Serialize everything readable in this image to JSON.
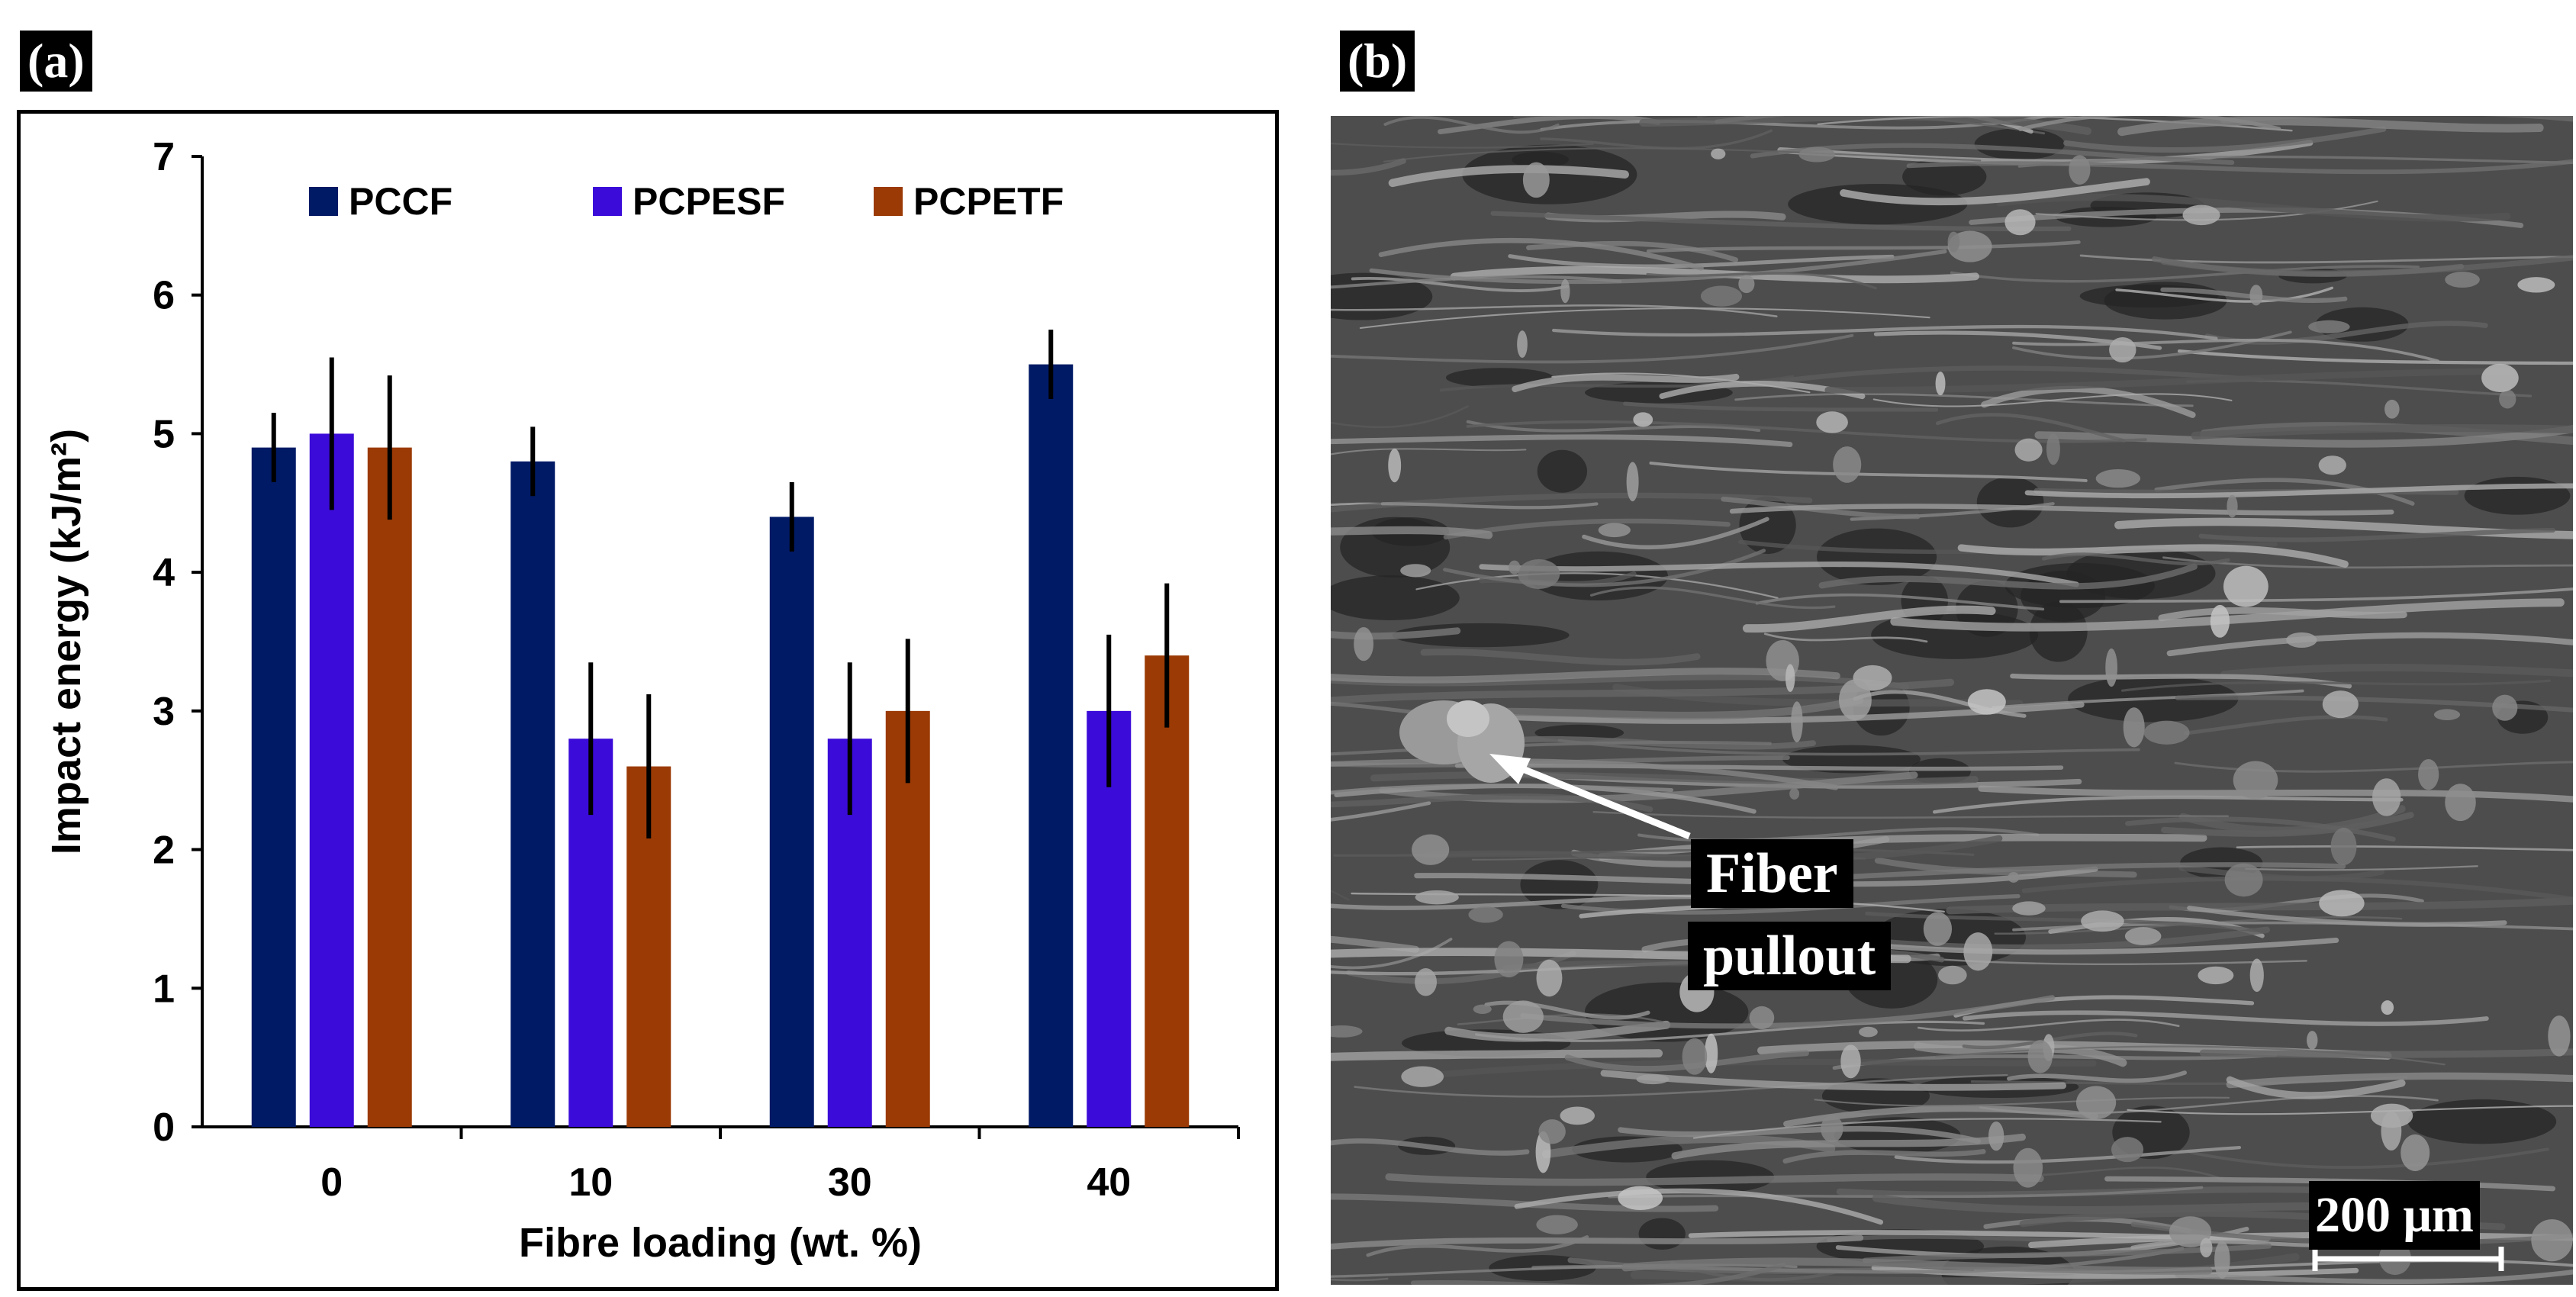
{
  "panels": {
    "a": "(a)",
    "b": "(b)"
  },
  "chart_data": {
    "type": "bar",
    "title": "",
    "xlabel": "Fibre loading (wt. %)",
    "ylabel": "Impact energy (kJ/m²)",
    "ylim": [
      0,
      7
    ],
    "yticks": [
      "0",
      "1",
      "2",
      "3",
      "4",
      "5",
      "6",
      "7"
    ],
    "categories": [
      "0",
      "10",
      "30",
      "40"
    ],
    "legend_position": "top",
    "series": [
      {
        "name": "PCCF",
        "color": "#001a66",
        "values": [
          4.9,
          4.8,
          4.4,
          5.5
        ],
        "errors": [
          0.25,
          0.25,
          0.25,
          0.25
        ]
      },
      {
        "name": "PCPESF",
        "color": "#3b0bd9",
        "values": [
          5.0,
          2.8,
          2.8,
          3.0
        ],
        "errors": [
          0.55,
          0.55,
          0.55,
          0.55
        ]
      },
      {
        "name": "PCPETF",
        "color": "#9b3a05",
        "values": [
          4.9,
          2.6,
          3.0,
          3.4
        ],
        "errors": [
          0.52,
          0.52,
          0.52,
          0.52
        ]
      }
    ]
  },
  "sem_image": {
    "annotation_line1": "Fiber",
    "annotation_line2": "pullout",
    "scale_bar": "200 μm"
  }
}
